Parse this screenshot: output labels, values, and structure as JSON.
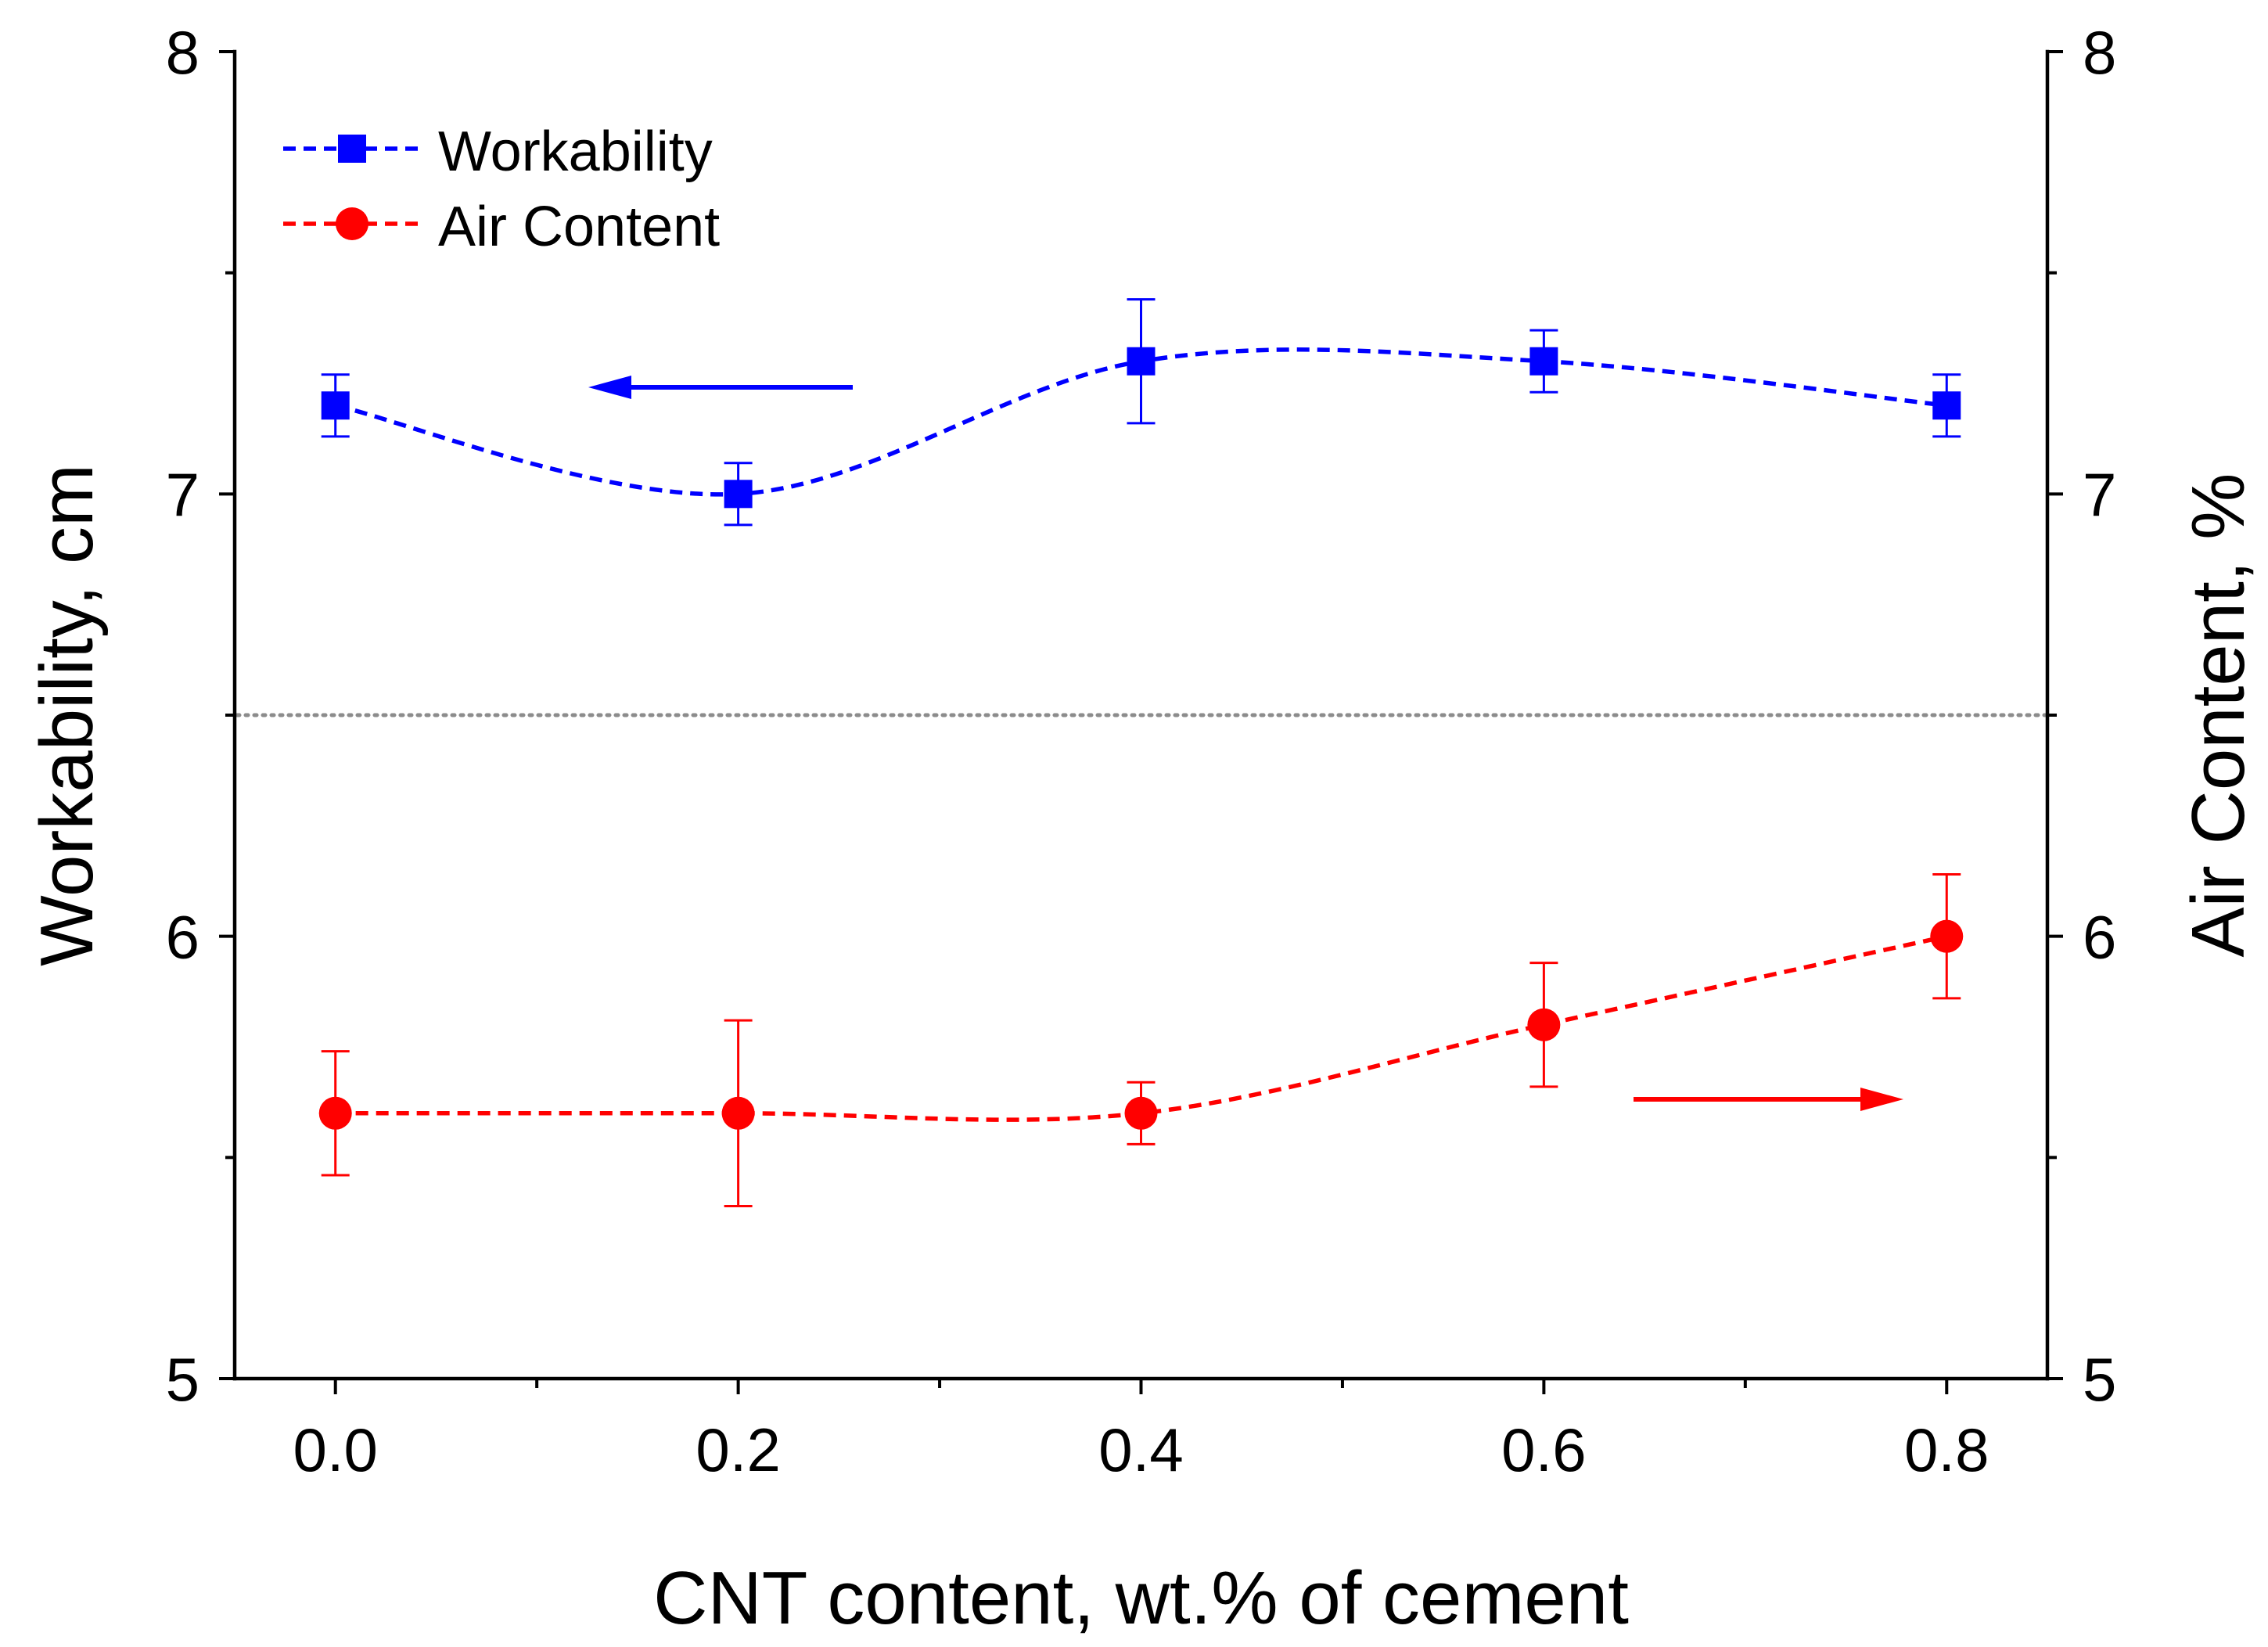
{
  "chart_data": {
    "type": "line",
    "xlabel": "CNT content, wt.% of cement",
    "ylabel_left": "Workability, cm",
    "ylabel_right": "Air Content,  %",
    "xlim": [
      -0.05,
      0.85
    ],
    "ylim_left": [
      5,
      8
    ],
    "ylim_right": [
      5,
      8
    ],
    "x_ticks": [
      "0.0",
      "0.2",
      "0.4",
      "0.6",
      "0.8"
    ],
    "x_tick_values": [
      0.0,
      0.2,
      0.4,
      0.6,
      0.8
    ],
    "x_minor_tick_values": [
      0.1,
      0.3,
      0.5,
      0.7
    ],
    "y_left_ticks": [
      "5",
      "6",
      "7",
      "8"
    ],
    "y_left_tick_values": [
      5,
      6,
      7,
      8
    ],
    "y_right_ticks": [
      "5",
      "6",
      "7",
      "8"
    ],
    "y_right_tick_values": [
      5,
      6,
      7,
      8
    ],
    "y_minor_tick_values": [
      5.5,
      6.5,
      7.5
    ],
    "reference_line": {
      "y": 6.5,
      "style": "dotted",
      "color": "#8c8c8c"
    },
    "legend_position": "top-left",
    "series": [
      {
        "name": "Workability",
        "axis": "left",
        "color": "#0000ff",
        "marker": "square",
        "line_style": "dashed-smooth",
        "x": [
          0.0,
          0.2,
          0.4,
          0.6,
          0.8
        ],
        "values": [
          7.2,
          7.0,
          7.3,
          7.3,
          7.2
        ],
        "errors": [
          0.07,
          0.07,
          0.14,
          0.07,
          0.07
        ]
      },
      {
        "name": "Air Content",
        "axis": "right",
        "color": "#ff0000",
        "marker": "circle",
        "line_style": "dashed-smooth",
        "x": [
          0.0,
          0.2,
          0.4,
          0.6,
          0.8
        ],
        "values": [
          5.6,
          5.6,
          5.6,
          5.8,
          6.0
        ],
        "errors": [
          0.14,
          0.21,
          0.07,
          0.14,
          0.14
        ]
      }
    ],
    "annotations": [
      {
        "type": "arrow",
        "series": "Workability",
        "direction": "left",
        "meaning": "read left axis"
      },
      {
        "type": "arrow",
        "series": "Air Content",
        "direction": "right",
        "meaning": "read right axis"
      }
    ]
  }
}
